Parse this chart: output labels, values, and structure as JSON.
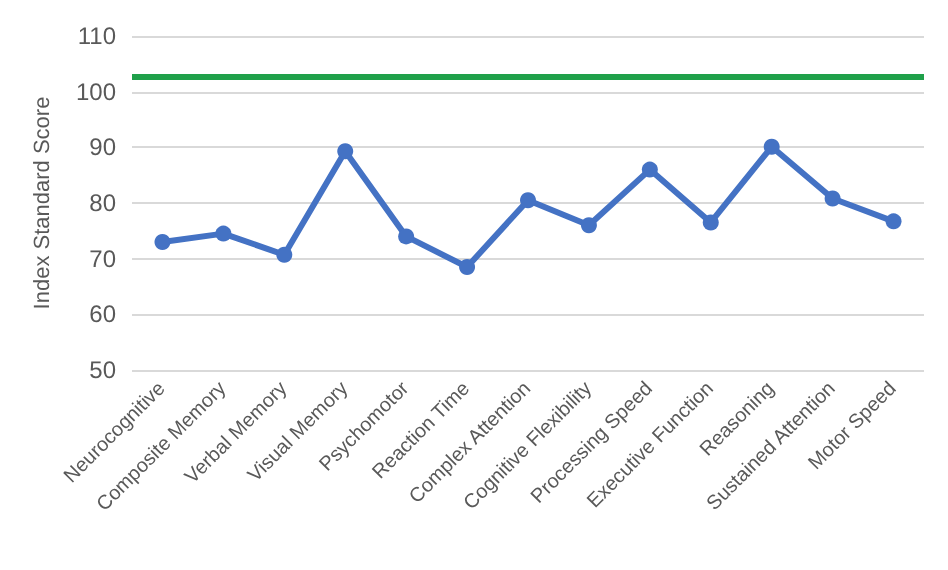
{
  "chart_data": {
    "type": "line",
    "ylabel": "Index Standard Score",
    "categories": [
      "Neurocognitive",
      "Composite Memory",
      "Verbal Memory",
      "Visual Memory",
      "Psychomotor",
      "Reaction Time",
      "Complex Attention",
      "Cognitive Flexibility",
      "Processing Speed",
      "Executive Function",
      "Reasoning",
      "Sustained Attention",
      "Motor Speed"
    ],
    "series": [
      {
        "color": "#4472c4",
        "values": [
          73,
          74.5,
          70.7,
          89.3,
          74,
          68.5,
          80.5,
          76,
          86,
          76.5,
          90.1,
          80.8,
          76.7
        ]
      }
    ],
    "ylim": [
      50,
      110
    ],
    "yticks": [
      50,
      60,
      70,
      80,
      90,
      100,
      110
    ],
    "grid": "y",
    "marker": "circle",
    "line_style": "solid",
    "ref_lines": [
      {
        "axis": "y",
        "value": 102.7,
        "color": "#1fa04a"
      }
    ]
  }
}
